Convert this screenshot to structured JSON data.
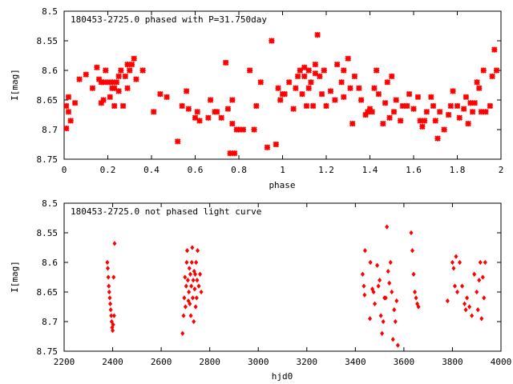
{
  "chart_data": [
    {
      "type": "scatter",
      "title": "180453-2725.0 phased with P=31.750day",
      "xlabel": "phase",
      "ylabel": "I[mag]",
      "xlim": [
        0,
        2
      ],
      "ylim": [
        8.75,
        8.5
      ],
      "y_inverted": true,
      "xticks": [
        "0",
        "0.2",
        "0.4",
        "0.6",
        "0.8",
        "1",
        "1.2",
        "1.4",
        "1.6",
        "1.8",
        "2"
      ],
      "yticks": [
        "8.5",
        "8.55",
        "8.6",
        "8.65",
        "8.7",
        "8.75"
      ],
      "marker": "star",
      "color": "#ff0000",
      "grid": false,
      "series": [
        {
          "x": [
            0.01,
            0.01,
            0.02,
            0.02,
            0.03,
            0.05,
            0.07,
            0.1,
            0.13,
            0.15,
            0.16,
            0.17,
            0.17,
            0.18,
            0.18,
            0.19,
            0.2,
            0.21,
            0.22,
            0.22,
            0.23,
            0.23,
            0.24,
            0.25,
            0.25,
            0.26,
            0.27,
            0.28,
            0.29,
            0.29,
            0.3,
            0.31,
            0.32,
            0.33,
            0.36,
            0.41,
            0.44,
            0.47,
            0.52,
            0.54,
            0.56,
            0.57,
            0.6,
            0.61,
            0.62,
            0.66,
            0.67,
            0.69,
            0.7,
            0.72,
            0.74,
            0.75,
            0.76,
            0.77,
            0.77,
            0.78,
            0.79,
            0.8,
            0.82,
            0.85,
            0.87,
            0.88,
            0.9,
            0.93,
            0.95,
            0.97,
            0.98,
            0.99,
            1.0,
            1.01,
            1.03,
            1.05,
            1.06,
            1.07,
            1.08,
            1.09,
            1.1,
            1.1,
            1.11,
            1.12,
            1.12,
            1.13,
            1.14,
            1.15,
            1.15,
            1.16,
            1.17,
            1.18,
            1.19,
            1.2,
            1.22,
            1.24,
            1.25,
            1.27,
            1.28,
            1.28,
            1.3,
            1.31,
            1.32,
            1.33,
            1.35,
            1.36,
            1.38,
            1.39,
            1.4,
            1.41,
            1.42,
            1.43,
            1.44,
            1.46,
            1.47,
            1.48,
            1.49,
            1.5,
            1.51,
            1.52,
            1.54,
            1.55,
            1.57,
            1.58,
            1.6,
            1.62,
            1.63,
            1.64,
            1.65,
            1.66,
            1.68,
            1.69,
            1.7,
            1.71,
            1.72,
            1.74,
            1.76,
            1.77,
            1.78,
            1.8,
            1.81,
            1.83,
            1.84,
            1.85,
            1.86,
            1.87,
            1.88,
            1.89,
            1.9,
            1.91,
            1.92,
            1.93,
            1.95,
            1.96,
            1.97,
            1.98
          ],
          "y": [
            8.66,
            8.698,
            8.645,
            8.67,
            8.685,
            8.655,
            8.615,
            8.607,
            8.63,
            8.595,
            8.615,
            8.655,
            8.62,
            8.65,
            8.62,
            8.6,
            8.62,
            8.645,
            8.62,
            8.63,
            8.63,
            8.66,
            8.62,
            8.61,
            8.635,
            8.6,
            8.66,
            8.61,
            8.59,
            8.63,
            8.6,
            8.59,
            8.58,
            8.615,
            8.6,
            8.67,
            8.64,
            8.645,
            8.72,
            8.66,
            8.635,
            8.665,
            8.68,
            8.67,
            8.685,
            8.68,
            8.65,
            8.67,
            8.67,
            8.68,
            8.587,
            8.665,
            8.74,
            8.65,
            8.69,
            8.74,
            8.7,
            8.7,
            8.7,
            8.6,
            8.7,
            8.66,
            8.62,
            8.73,
            8.55,
            8.725,
            8.63,
            8.65,
            8.64,
            8.64,
            8.62,
            8.665,
            8.63,
            8.61,
            8.6,
            8.64,
            8.595,
            8.61,
            8.66,
            8.63,
            8.6,
            8.62,
            8.66,
            8.605,
            8.59,
            8.54,
            8.61,
            8.64,
            8.6,
            8.66,
            8.635,
            8.65,
            8.59,
            8.62,
            8.645,
            8.6,
            8.58,
            8.63,
            8.69,
            8.61,
            8.63,
            8.65,
            8.675,
            8.67,
            8.665,
            8.67,
            8.63,
            8.6,
            8.64,
            8.69,
            8.655,
            8.62,
            8.68,
            8.61,
            8.67,
            8.65,
            8.685,
            8.66,
            8.66,
            8.64,
            8.665,
            8.645,
            8.685,
            8.695,
            8.685,
            8.67,
            8.645,
            8.66,
            8.685,
            8.715,
            8.67,
            8.7,
            8.675,
            8.66,
            8.635,
            8.66,
            8.68,
            8.665,
            8.645,
            8.69,
            8.655,
            8.67,
            8.655,
            8.62,
            8.63,
            8.67,
            8.6,
            8.67,
            8.66,
            8.61,
            8.565,
            8.6
          ]
        }
      ]
    },
    {
      "type": "scatter",
      "title": "180453-2725.0 not phased light curve",
      "xlabel": "hjd0",
      "ylabel": "I[mag]",
      "xlim": [
        2200,
        4000
      ],
      "ylim": [
        8.75,
        8.5
      ],
      "y_inverted": true,
      "xticks": [
        "2200",
        "2400",
        "2600",
        "2800",
        "3000",
        "3200",
        "3400",
        "3600",
        "3800",
        "4000"
      ],
      "yticks": [
        "8.5",
        "8.55",
        "8.6",
        "8.65",
        "8.7",
        "8.75"
      ],
      "marker": "diamond",
      "color": "#ff0000",
      "grid": false,
      "series": [
        {
          "x": [
            2378,
            2380,
            2382,
            2384,
            2386,
            2388,
            2390,
            2392,
            2394,
            2396,
            2398,
            2400,
            2402,
            2404,
            2406,
            2408,
            2688,
            2692,
            2695,
            2698,
            2700,
            2703,
            2705,
            2707,
            2710,
            2712,
            2714,
            2716,
            2718,
            2720,
            2722,
            2724,
            2726,
            2728,
            2730,
            2732,
            2734,
            2736,
            2738,
            2740,
            2742,
            2744,
            2746,
            2748,
            2750,
            2755,
            2760,
            2765,
            3430,
            3435,
            3438,
            3440,
            3460,
            3462,
            3470,
            3475,
            3480,
            3490,
            3495,
            3500,
            3505,
            3510,
            3515,
            3520,
            3525,
            3530,
            3535,
            3540,
            3545,
            3550,
            3555,
            3560,
            3565,
            3570,
            3575,
            3630,
            3635,
            3640,
            3645,
            3650,
            3655,
            3660,
            3780,
            3800,
            3805,
            3810,
            3815,
            3820,
            3830,
            3840,
            3850,
            3855,
            3860,
            3870,
            3880,
            3890,
            3900,
            3905,
            3910,
            3915,
            3920,
            3925,
            3930,
            3935
          ],
          "y": [
            8.6,
            8.61,
            8.625,
            8.64,
            8.65,
            8.66,
            8.67,
            8.68,
            8.69,
            8.7,
            8.71,
            8.715,
            8.705,
            8.625,
            8.69,
            8.568,
            8.72,
            8.69,
            8.66,
            8.625,
            8.675,
            8.64,
            8.6,
            8.58,
            8.63,
            8.665,
            8.65,
            8.61,
            8.67,
            8.62,
            8.69,
            8.64,
            8.6,
            8.575,
            8.66,
            8.63,
            8.7,
            8.615,
            8.645,
            8.62,
            8.675,
            8.6,
            8.66,
            8.63,
            8.58,
            8.64,
            8.62,
            8.65,
            8.62,
            8.64,
            8.655,
            8.58,
            8.695,
            8.6,
            8.645,
            8.65,
            8.67,
            8.605,
            8.64,
            8.63,
            8.69,
            8.72,
            8.7,
            8.66,
            8.66,
            8.54,
            8.615,
            8.635,
            8.6,
            8.65,
            8.73,
            8.68,
            8.7,
            8.665,
            8.74,
            8.55,
            8.58,
            8.62,
            8.65,
            8.66,
            8.67,
            8.675,
            8.665,
            8.6,
            8.61,
            8.64,
            8.59,
            8.65,
            8.6,
            8.64,
            8.67,
            8.68,
            8.66,
            8.675,
            8.69,
            8.62,
            8.65,
            8.68,
            8.63,
            8.6,
            8.695,
            8.625,
            8.66,
            8.6
          ]
        }
      ]
    }
  ]
}
